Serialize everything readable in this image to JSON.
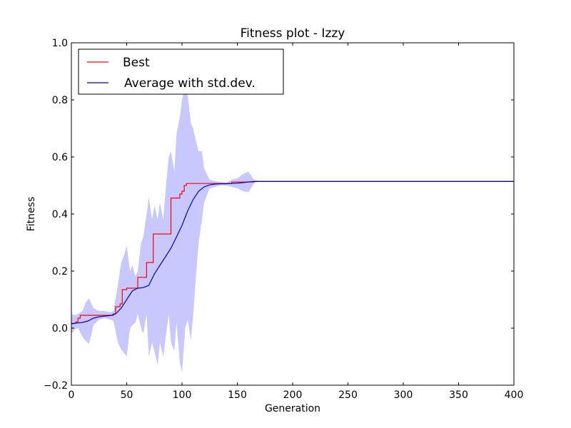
{
  "chart_data": {
    "type": "line",
    "title": "Fitness plot - Izzy",
    "xlabel": "Generation",
    "ylabel": "Fitness",
    "xlim": [
      0,
      400
    ],
    "ylim": [
      -0.2,
      1.0
    ],
    "xticks": [
      0,
      50,
      100,
      150,
      200,
      250,
      300,
      350,
      400
    ],
    "yticks": [
      -0.2,
      0.0,
      0.2,
      0.4,
      0.6,
      0.8,
      1.0
    ],
    "xtick_labels": [
      "0",
      "50",
      "100",
      "150",
      "200",
      "250",
      "300",
      "350",
      "400"
    ],
    "ytick_labels": [
      "−0.2",
      "0.0",
      "0.2",
      "0.4",
      "0.6",
      "0.8",
      "1.0"
    ],
    "grid": false,
    "legend_position": "upper-left",
    "colors": {
      "best": "#ff0000",
      "average": "#0000cc",
      "std_band": "#c8c8ff"
    },
    "series": [
      {
        "name": "Best",
        "color": "#ff0000",
        "step": true,
        "x": [
          0,
          4,
          6,
          8,
          38,
          40,
          44,
          46,
          50,
          60,
          68,
          74,
          90,
          98,
          100,
          102,
          104,
          145,
          165,
          400
        ],
        "y": [
          0.017,
          0.022,
          0.035,
          0.045,
          0.05,
          0.075,
          0.085,
          0.135,
          0.14,
          0.178,
          0.23,
          0.33,
          0.456,
          0.47,
          0.48,
          0.5,
          0.507,
          0.512,
          0.514,
          0.514
        ]
      },
      {
        "name": "Average with std.dev.",
        "color": "#0000cc",
        "x": [
          0,
          5,
          10,
          15,
          20,
          25,
          30,
          35,
          40,
          45,
          50,
          55,
          60,
          65,
          70,
          75,
          80,
          85,
          90,
          95,
          100,
          105,
          110,
          115,
          120,
          125,
          130,
          135,
          140,
          145,
          150,
          155,
          160,
          165,
          170,
          400
        ],
        "y": [
          0.015,
          0.018,
          0.02,
          0.025,
          0.035,
          0.04,
          0.042,
          0.044,
          0.05,
          0.07,
          0.1,
          0.13,
          0.14,
          0.142,
          0.15,
          0.19,
          0.22,
          0.25,
          0.28,
          0.32,
          0.36,
          0.41,
          0.45,
          0.48,
          0.495,
          0.502,
          0.505,
          0.506,
          0.506,
          0.507,
          0.508,
          0.51,
          0.512,
          0.514,
          0.514,
          0.514
        ]
      }
    ],
    "std_band": {
      "x": [
        0,
        3,
        6,
        10,
        13,
        16,
        20,
        25,
        30,
        35,
        38,
        42,
        45,
        48,
        50,
        53,
        55,
        58,
        60,
        63,
        65,
        68,
        70,
        73,
        75,
        78,
        80,
        83,
        85,
        88,
        90,
        93,
        95,
        98,
        100,
        103,
        105,
        108,
        110,
        113,
        115,
        118,
        120,
        125,
        130,
        135,
        140,
        145,
        150,
        155,
        160,
        165,
        170,
        400
      ],
      "upper": [
        0.05,
        0.045,
        0.05,
        0.06,
        0.09,
        0.105,
        0.07,
        0.06,
        0.06,
        0.055,
        0.06,
        0.15,
        0.23,
        0.26,
        0.29,
        0.2,
        0.22,
        0.18,
        0.2,
        0.3,
        0.32,
        0.4,
        0.46,
        0.38,
        0.43,
        0.38,
        0.44,
        0.38,
        0.48,
        0.6,
        0.62,
        0.55,
        0.68,
        0.74,
        0.8,
        0.86,
        0.82,
        0.72,
        0.7,
        0.65,
        0.62,
        0.62,
        0.56,
        0.52,
        0.515,
        0.512,
        0.51,
        0.52,
        0.525,
        0.54,
        0.548,
        0.52,
        0.514,
        0.514
      ],
      "lower": [
        -0.02,
        -0.005,
        0.0,
        -0.03,
        -0.045,
        -0.055,
        0.01,
        0.03,
        0.035,
        0.03,
        0.025,
        -0.05,
        -0.075,
        -0.09,
        -0.1,
        0.0,
        0.01,
        0.02,
        0.05,
        0.0,
        -0.02,
        0.05,
        -0.1,
        -0.05,
        -0.08,
        -0.13,
        -0.05,
        -0.1,
        -0.04,
        0.05,
        -0.05,
        -0.08,
        0.02,
        -0.12,
        -0.155,
        0.0,
        0.03,
        -0.04,
        0.04,
        0.2,
        0.3,
        0.38,
        0.44,
        0.49,
        0.495,
        0.5,
        0.5,
        0.495,
        0.49,
        0.48,
        0.476,
        0.508,
        0.514,
        0.514
      ]
    }
  }
}
